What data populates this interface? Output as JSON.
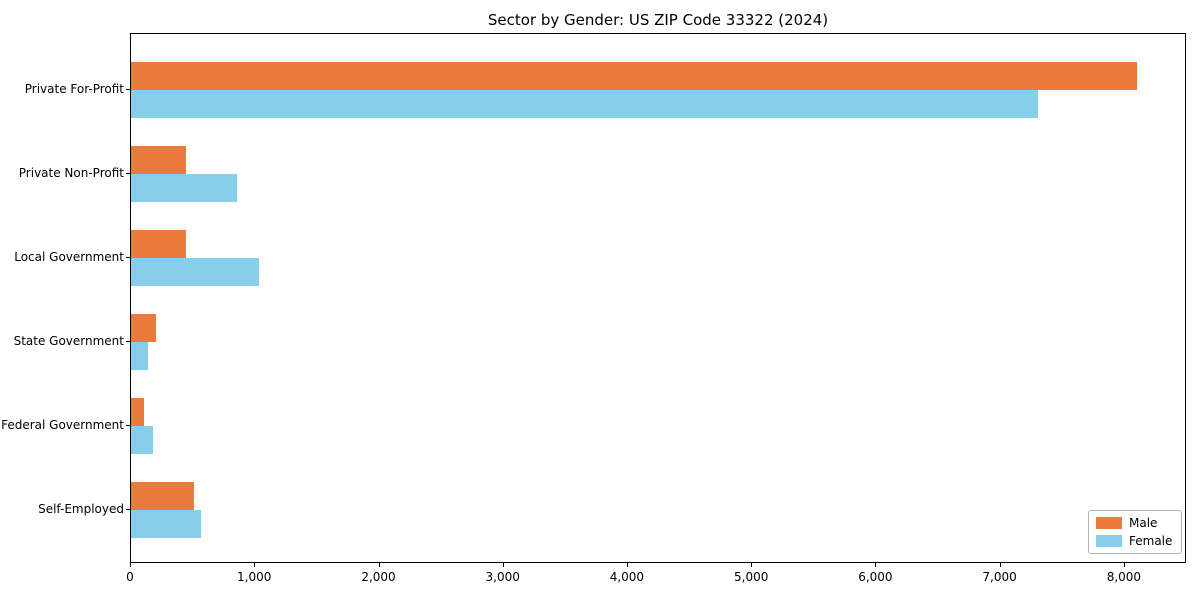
{
  "chart_data": {
    "type": "bar",
    "orientation": "horizontal",
    "title": "Sector by Gender: US ZIP Code 33322 (2024)",
    "categories": [
      "Private For-Profit",
      "Private Non-Profit",
      "Local Government",
      "State Government",
      "Federal Government",
      "Self-Employed"
    ],
    "series": [
      {
        "name": "Male",
        "color": "#eb7a3c",
        "values": [
          8100,
          440,
          445,
          200,
          105,
          510
        ]
      },
      {
        "name": "Female",
        "color": "#87ceeb",
        "values": [
          7300,
          850,
          1030,
          140,
          180,
          565
        ]
      }
    ],
    "xlim": [
      0,
      8500
    ],
    "x_ticks": [
      0,
      1000,
      2000,
      3000,
      4000,
      5000,
      6000,
      7000,
      8000
    ],
    "x_tick_labels": [
      "0",
      "1,000",
      "2,000",
      "3,000",
      "4,000",
      "5,000",
      "6,000",
      "7,000",
      "8,000"
    ],
    "xlabel": "",
    "ylabel": "",
    "grid": false,
    "legend": {
      "position": "lower right",
      "entries": [
        "Male",
        "Female"
      ]
    }
  }
}
